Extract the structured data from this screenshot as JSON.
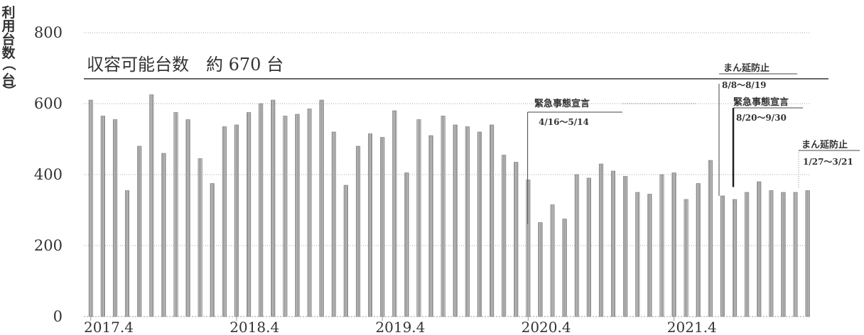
{
  "chart_data": {
    "type": "bar",
    "title": "",
    "ylabel": "利用台数（台）",
    "xlabel": "",
    "ylim": [
      0,
      800
    ],
    "yticks": [
      "0",
      "200",
      "400",
      "600",
      "800"
    ],
    "grid": true,
    "bar_color": "#8c8c8c",
    "x_tick_labels": [
      {
        "label": "2017.4",
        "index": 0
      },
      {
        "label": "2018.4",
        "index": 12
      },
      {
        "label": "2019.4",
        "index": 24
      },
      {
        "label": "2020.4",
        "index": 36
      },
      {
        "label": "2021.4",
        "index": 48
      }
    ],
    "values": [
      610,
      565,
      555,
      355,
      480,
      625,
      460,
      575,
      555,
      445,
      375,
      535,
      540,
      575,
      600,
      610,
      565,
      570,
      585,
      610,
      520,
      370,
      480,
      515,
      505,
      580,
      405,
      555,
      510,
      565,
      540,
      535,
      520,
      540,
      455,
      435,
      385,
      265,
      315,
      275,
      400,
      390,
      430,
      410,
      395,
      350,
      345,
      400,
      405,
      330,
      375,
      440,
      340,
      330,
      350,
      380,
      355,
      350,
      350,
      355
    ],
    "reference_line": {
      "value": 670,
      "label": "収容可能台数　約 670 台"
    },
    "annotations": [
      {
        "title": "緊急事態宣言",
        "dates": "4/16～5/14",
        "index": 36
      },
      {
        "title": "まん延防止",
        "dates": "8/8～8/19",
        "index": 52
      },
      {
        "title": "緊急事態宣言",
        "dates": "8/20～9/30",
        "index": 53
      },
      {
        "title": "まん延防止",
        "dates": "1/27～3/21",
        "index": 59
      }
    ]
  }
}
